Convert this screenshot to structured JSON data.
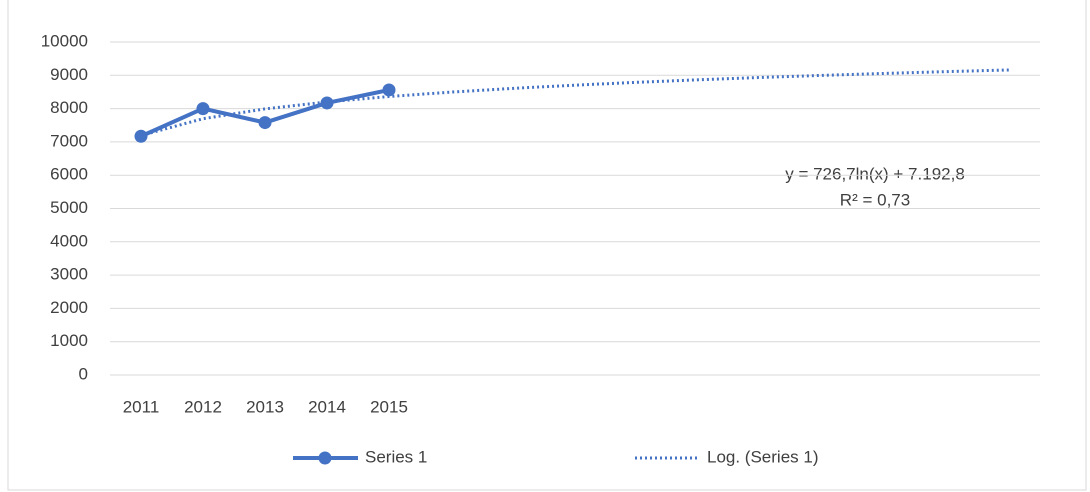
{
  "chart_data": {
    "type": "line",
    "categories": [
      "2011",
      "2012",
      "2013",
      "2014",
      "2015",
      null,
      null,
      null,
      null,
      null,
      null,
      null,
      null,
      null,
      null
    ],
    "series": [
      {
        "name": "Series 1",
        "color": "#4472c4",
        "style": "solid",
        "markers": true,
        "values": [
          7170,
          8000,
          7580,
          8170,
          8560,
          null,
          null,
          null,
          null,
          null,
          null,
          null,
          null,
          null,
          null
        ]
      },
      {
        "name": "Log. (Series 1)",
        "color": "#4472c4",
        "style": "dotted",
        "markers": false,
        "values": [
          7192.8,
          7696.5,
          7991.2,
          8200.2,
          8362.4,
          8494.9,
          8606.9,
          8703.9,
          8789.5,
          8866.1,
          8935.3,
          8998.6,
          9056.7,
          9110.6,
          9160.7
        ]
      }
    ],
    "annotations": [
      "y = 726,7ln(x) + 7.192,8",
      "R² = 0,73"
    ],
    "ylim": [
      0,
      10000
    ],
    "yticks": [
      0,
      1000,
      2000,
      3000,
      4000,
      5000,
      6000,
      7000,
      8000,
      9000,
      10000
    ],
    "grid": true,
    "legend": "bottom"
  }
}
